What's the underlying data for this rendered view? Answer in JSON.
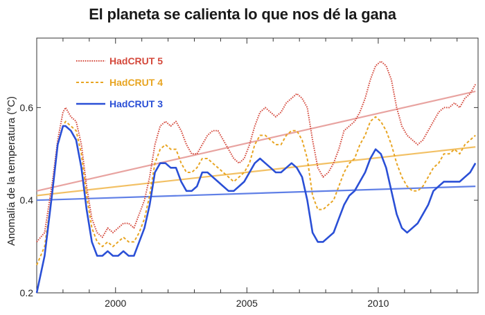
{
  "chart_data": {
    "type": "line",
    "title": "El planeta se calienta lo que nos dé la gana",
    "xlabel": "",
    "ylabel": "Anomalía de la temperatura (°C)",
    "xlim": [
      1997.0,
      2013.8
    ],
    "ylim": [
      0.2,
      0.75
    ],
    "xticks": [
      2000,
      2005,
      2010
    ],
    "yticks": [
      0.2,
      0.4,
      0.6
    ],
    "minor_xticks": [
      1998,
      1999,
      2001,
      2002,
      2003,
      2004,
      2006,
      2007,
      2008,
      2009,
      2011,
      2012,
      2013
    ],
    "grid": false,
    "legend_position": "top-left",
    "series": [
      {
        "name": "HadCRUT 5",
        "color": "#d4483b",
        "style": "dotted",
        "x": [
          1997.0,
          1997.3,
          1997.6,
          1997.8,
          1998.0,
          1998.1,
          1998.3,
          1998.5,
          1998.7,
          1998.9,
          1999.1,
          1999.3,
          1999.5,
          1999.7,
          1999.9,
          2000.1,
          2000.3,
          2000.5,
          2000.7,
          2000.9,
          2001.1,
          2001.3,
          2001.5,
          2001.7,
          2001.9,
          2002.1,
          2002.3,
          2002.5,
          2002.7,
          2002.9,
          2003.1,
          2003.3,
          2003.5,
          2003.7,
          2003.9,
          2004.1,
          2004.3,
          2004.5,
          2004.7,
          2004.9,
          2005.1,
          2005.3,
          2005.5,
          2005.7,
          2005.9,
          2006.1,
          2006.3,
          2006.5,
          2006.7,
          2006.9,
          2007.1,
          2007.3,
          2007.5,
          2007.7,
          2007.9,
          2008.1,
          2008.3,
          2008.5,
          2008.7,
          2008.9,
          2009.1,
          2009.3,
          2009.5,
          2009.7,
          2009.9,
          2010.1,
          2010.3,
          2010.5,
          2010.7,
          2010.9,
          2011.1,
          2011.3,
          2011.5,
          2011.7,
          2011.9,
          2012.1,
          2012.3,
          2012.5,
          2012.7,
          2012.9,
          2013.1,
          2013.3,
          2013.5,
          2013.7
        ],
        "values": [
          0.31,
          0.33,
          0.44,
          0.53,
          0.59,
          0.6,
          0.58,
          0.57,
          0.52,
          0.43,
          0.36,
          0.33,
          0.32,
          0.34,
          0.33,
          0.34,
          0.35,
          0.35,
          0.34,
          0.37,
          0.4,
          0.45,
          0.52,
          0.56,
          0.57,
          0.56,
          0.57,
          0.55,
          0.52,
          0.5,
          0.5,
          0.52,
          0.54,
          0.55,
          0.55,
          0.53,
          0.51,
          0.49,
          0.48,
          0.49,
          0.52,
          0.56,
          0.59,
          0.6,
          0.59,
          0.58,
          0.59,
          0.61,
          0.62,
          0.63,
          0.62,
          0.6,
          0.53,
          0.47,
          0.45,
          0.46,
          0.48,
          0.51,
          0.55,
          0.56,
          0.57,
          0.59,
          0.62,
          0.66,
          0.69,
          0.7,
          0.69,
          0.66,
          0.6,
          0.56,
          0.54,
          0.53,
          0.52,
          0.53,
          0.55,
          0.57,
          0.59,
          0.6,
          0.6,
          0.61,
          0.6,
          0.62,
          0.63,
          0.65
        ]
      },
      {
        "name": "HadCRUT 4",
        "color": "#e8a522",
        "style": "dashed",
        "x": [
          1997.0,
          1997.3,
          1997.6,
          1997.8,
          1998.0,
          1998.1,
          1998.3,
          1998.5,
          1998.7,
          1998.9,
          1999.1,
          1999.3,
          1999.5,
          1999.7,
          1999.9,
          2000.1,
          2000.3,
          2000.5,
          2000.7,
          2000.9,
          2001.1,
          2001.3,
          2001.5,
          2001.7,
          2001.9,
          2002.1,
          2002.3,
          2002.5,
          2002.7,
          2002.9,
          2003.1,
          2003.3,
          2003.5,
          2003.7,
          2003.9,
          2004.1,
          2004.3,
          2004.5,
          2004.7,
          2004.9,
          2005.1,
          2005.3,
          2005.5,
          2005.7,
          2005.9,
          2006.1,
          2006.3,
          2006.5,
          2006.7,
          2006.9,
          2007.1,
          2007.3,
          2007.5,
          2007.7,
          2007.9,
          2008.1,
          2008.3,
          2008.5,
          2008.7,
          2008.9,
          2009.1,
          2009.3,
          2009.5,
          2009.7,
          2009.9,
          2010.1,
          2010.3,
          2010.5,
          2010.7,
          2010.9,
          2011.1,
          2011.3,
          2011.5,
          2011.7,
          2011.9,
          2012.1,
          2012.3,
          2012.5,
          2012.7,
          2012.9,
          2013.1,
          2013.3,
          2013.5,
          2013.7
        ],
        "values": [
          0.26,
          0.3,
          0.42,
          0.52,
          0.56,
          0.57,
          0.56,
          0.55,
          0.5,
          0.41,
          0.34,
          0.31,
          0.3,
          0.31,
          0.3,
          0.31,
          0.32,
          0.31,
          0.31,
          0.33,
          0.36,
          0.41,
          0.48,
          0.51,
          0.52,
          0.51,
          0.51,
          0.48,
          0.46,
          0.46,
          0.47,
          0.49,
          0.49,
          0.48,
          0.47,
          0.46,
          0.45,
          0.44,
          0.45,
          0.46,
          0.48,
          0.52,
          0.54,
          0.54,
          0.53,
          0.52,
          0.52,
          0.54,
          0.55,
          0.55,
          0.53,
          0.49,
          0.41,
          0.38,
          0.38,
          0.39,
          0.4,
          0.43,
          0.46,
          0.48,
          0.49,
          0.52,
          0.54,
          0.57,
          0.58,
          0.57,
          0.55,
          0.52,
          0.48,
          0.45,
          0.43,
          0.42,
          0.42,
          0.43,
          0.45,
          0.47,
          0.48,
          0.5,
          0.5,
          0.51,
          0.5,
          0.52,
          0.53,
          0.54
        ]
      },
      {
        "name": "HadCRUT 3",
        "color": "#2a4fd6",
        "style": "solid",
        "x": [
          1997.0,
          1997.3,
          1997.6,
          1997.8,
          1998.0,
          1998.1,
          1998.3,
          1998.5,
          1998.7,
          1998.9,
          1999.1,
          1999.3,
          1999.5,
          1999.7,
          1999.9,
          2000.1,
          2000.3,
          2000.5,
          2000.7,
          2000.9,
          2001.1,
          2001.3,
          2001.5,
          2001.7,
          2001.9,
          2002.1,
          2002.3,
          2002.5,
          2002.7,
          2002.9,
          2003.1,
          2003.3,
          2003.5,
          2003.7,
          2003.9,
          2004.1,
          2004.3,
          2004.5,
          2004.7,
          2004.9,
          2005.1,
          2005.3,
          2005.5,
          2005.7,
          2005.9,
          2006.1,
          2006.3,
          2006.5,
          2006.7,
          2006.9,
          2007.1,
          2007.3,
          2007.5,
          2007.7,
          2007.9,
          2008.1,
          2008.3,
          2008.5,
          2008.7,
          2008.9,
          2009.1,
          2009.3,
          2009.5,
          2009.7,
          2009.9,
          2010.1,
          2010.3,
          2010.5,
          2010.7,
          2010.9,
          2011.1,
          2011.3,
          2011.5,
          2011.7,
          2011.9,
          2012.1,
          2012.3,
          2012.5,
          2012.7,
          2012.9,
          2013.1,
          2013.3,
          2013.5,
          2013.7
        ],
        "values": [
          0.2,
          0.28,
          0.42,
          0.52,
          0.56,
          0.56,
          0.55,
          0.53,
          0.47,
          0.38,
          0.31,
          0.28,
          0.28,
          0.29,
          0.28,
          0.28,
          0.29,
          0.28,
          0.28,
          0.31,
          0.34,
          0.39,
          0.46,
          0.48,
          0.48,
          0.47,
          0.47,
          0.44,
          0.42,
          0.42,
          0.43,
          0.46,
          0.46,
          0.45,
          0.44,
          0.43,
          0.42,
          0.42,
          0.43,
          0.44,
          0.46,
          0.48,
          0.49,
          0.48,
          0.47,
          0.46,
          0.46,
          0.47,
          0.48,
          0.47,
          0.45,
          0.4,
          0.33,
          0.31,
          0.31,
          0.32,
          0.33,
          0.36,
          0.39,
          0.41,
          0.42,
          0.44,
          0.46,
          0.49,
          0.51,
          0.5,
          0.47,
          0.42,
          0.37,
          0.34,
          0.33,
          0.34,
          0.35,
          0.37,
          0.39,
          0.42,
          0.43,
          0.44,
          0.44,
          0.44,
          0.44,
          0.45,
          0.46,
          0.48
        ]
      }
    ],
    "trendlines": [
      {
        "series": "HadCRUT 5",
        "color": "#e8a3a0",
        "x": [
          1997.0,
          2013.7
        ],
        "values": [
          0.42,
          0.635
        ]
      },
      {
        "series": "HadCRUT 4",
        "color": "#f2c064",
        "x": [
          1997.0,
          2013.7
        ],
        "values": [
          0.41,
          0.515
        ]
      },
      {
        "series": "HadCRUT 3",
        "color": "#5f7fe6",
        "x": [
          1997.0,
          2013.7
        ],
        "values": [
          0.4,
          0.43
        ]
      }
    ]
  }
}
